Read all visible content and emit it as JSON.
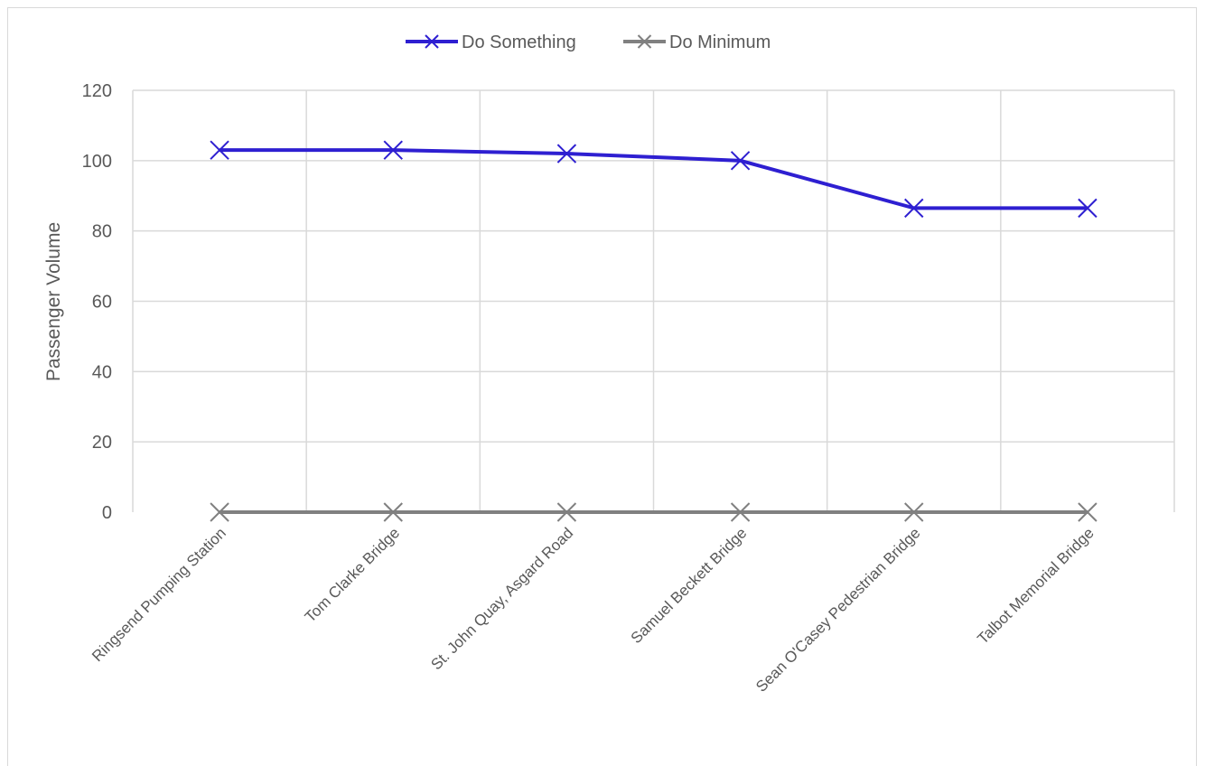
{
  "chart_data": {
    "type": "line",
    "title": "",
    "xlabel": "",
    "ylabel": "Passenger Volume",
    "ylim": [
      0,
      120
    ],
    "yticks": [
      0,
      20,
      40,
      60,
      80,
      100,
      120
    ],
    "grid": true,
    "legend_position": "top",
    "categories": [
      "Ringsend Pumping Station",
      "Tom Clarke Bridge",
      "St. John Quay, Asgard Road",
      "Samuel Beckett Bridge",
      "Sean O'Casey Pedestrian Bridge",
      "Talbot Memorial Bridge"
    ],
    "series": [
      {
        "name": "Do Something",
        "color": "#2e1fd1",
        "marker": "x",
        "values": [
          103,
          103,
          102,
          100,
          86.5,
          86.5
        ]
      },
      {
        "name": "Do Minimum",
        "color": "#808080",
        "marker": "x",
        "values": [
          0,
          0,
          0,
          0,
          0,
          0
        ]
      }
    ]
  }
}
